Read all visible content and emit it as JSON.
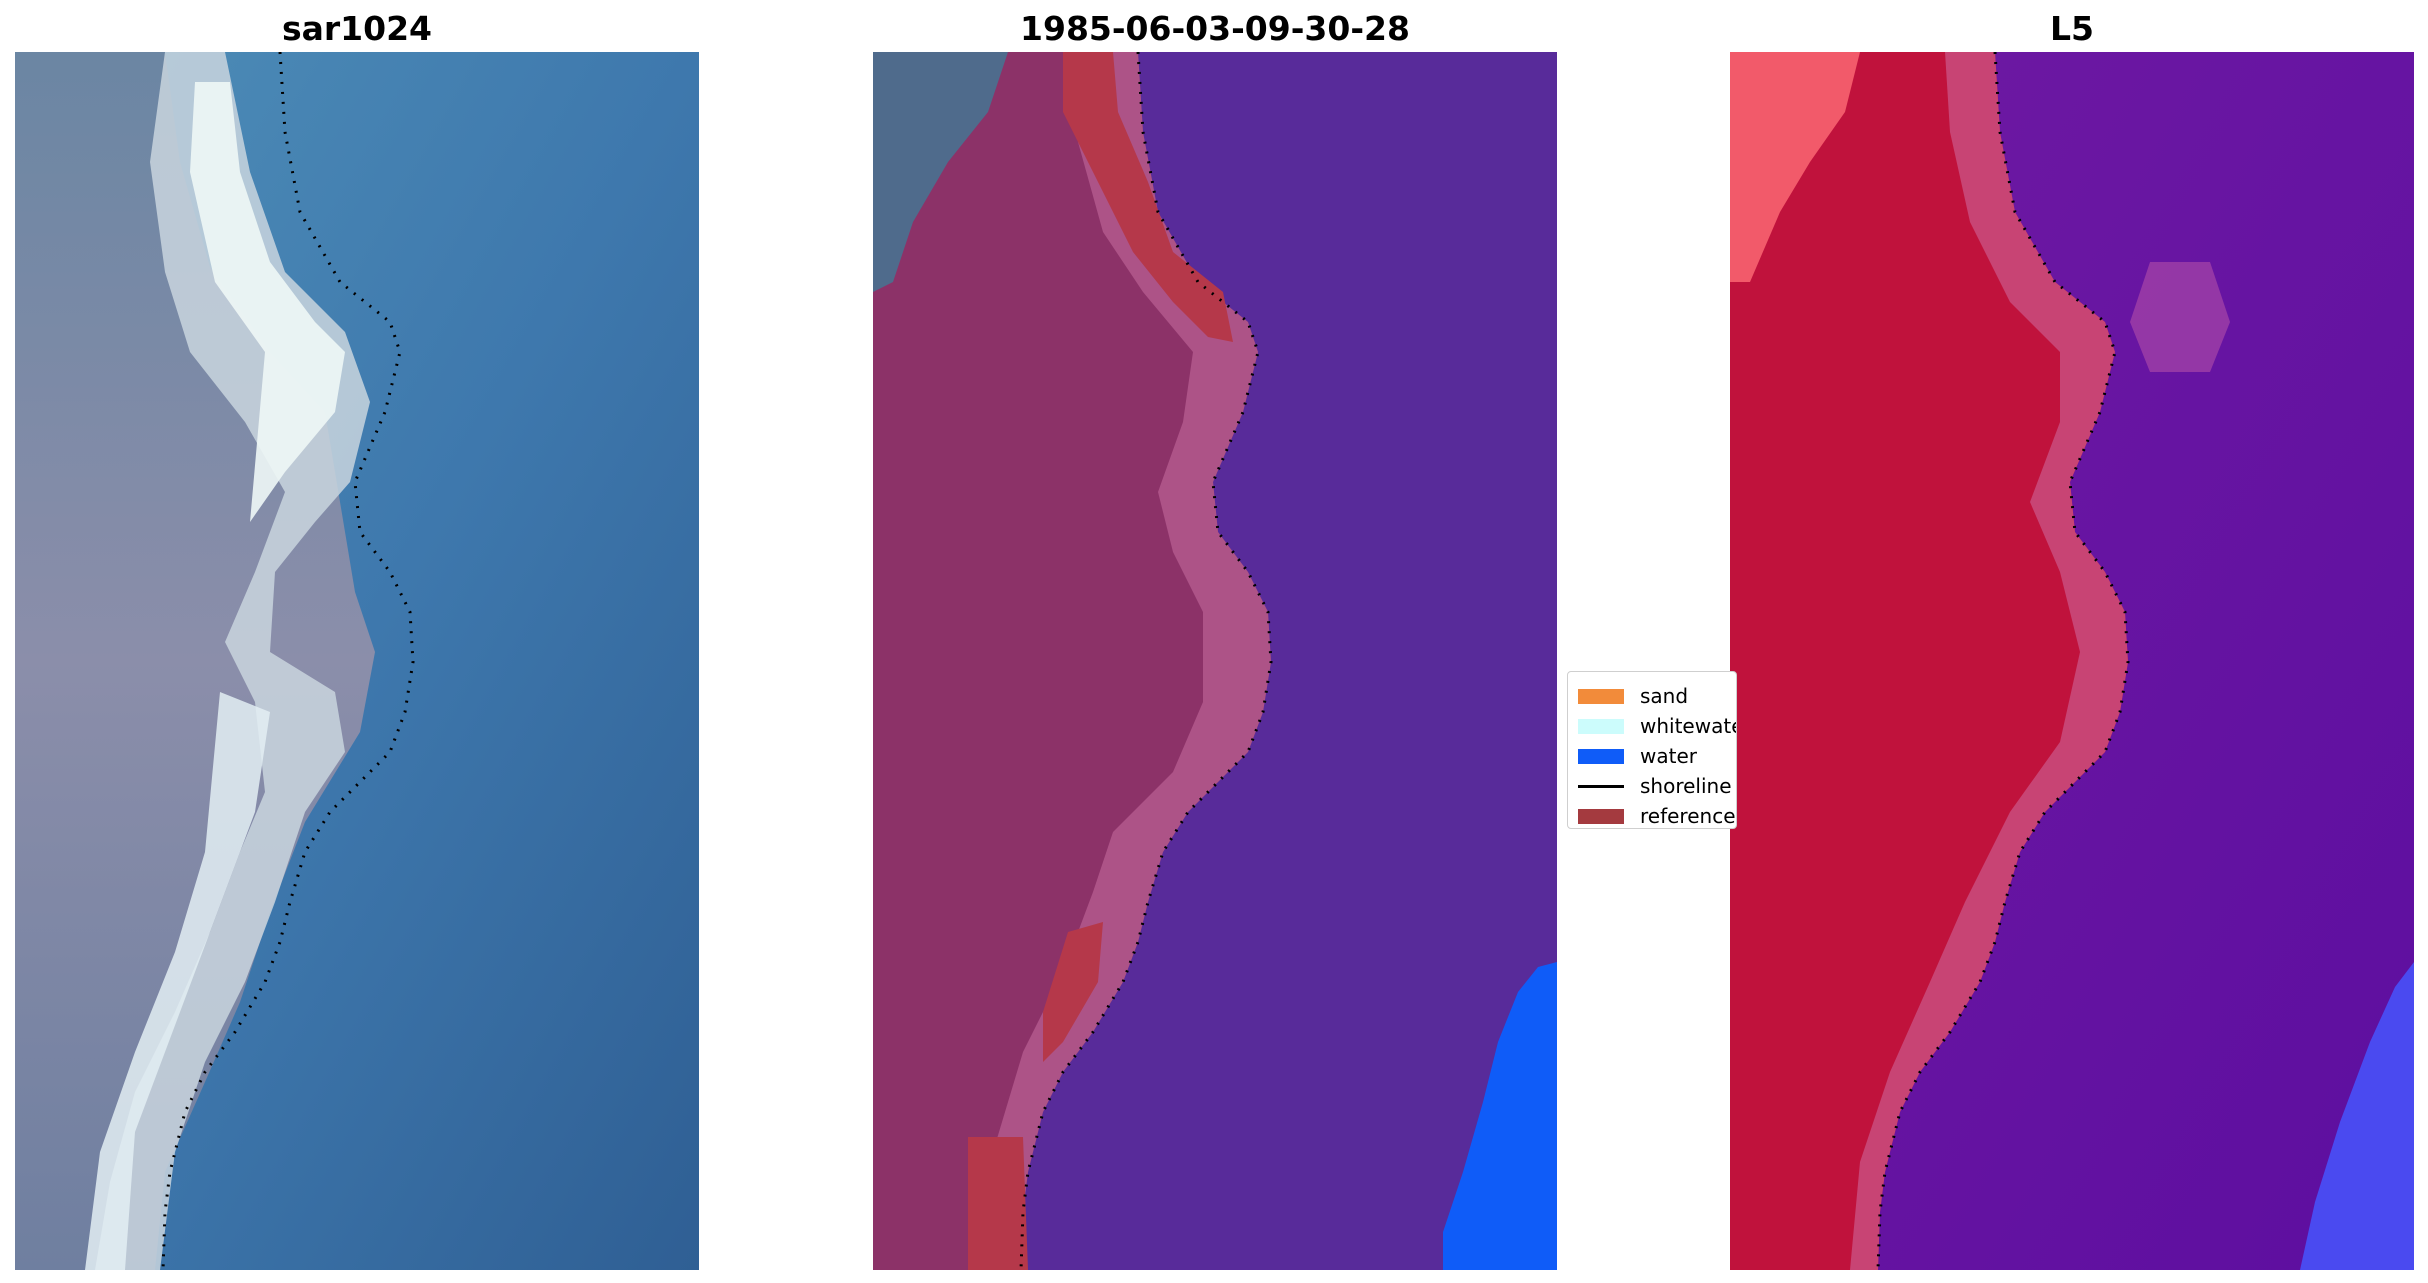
{
  "panels": [
    {
      "title": "sar1024",
      "kind": "rgb-image"
    },
    {
      "title": "1985-06-03-09-30-28",
      "kind": "classified-image"
    },
    {
      "title": "L5",
      "kind": "probability-image"
    }
  ],
  "legend": {
    "items": [
      {
        "label": "sand",
        "type": "patch",
        "color": "#f28b3a"
      },
      {
        "label": "whitewater",
        "type": "patch",
        "color": "#ccfcfc"
      },
      {
        "label": "water",
        "type": "patch",
        "color": "#0f5cf8"
      },
      {
        "label": "shoreline",
        "type": "line",
        "color": "#000000"
      },
      {
        "label": "reference",
        "type": "patch",
        "color": "#a43a3f"
      }
    ]
  },
  "colors": {
    "water_rgb": "#3d73a8",
    "land_rgb": "#7f8aa6",
    "surf_rgb": "#e6f2f4",
    "classified_land": "#8c3268",
    "classified_water": "#582b9a",
    "classified_reference": "#b5384a",
    "classified_water_class": "#0f5cf8",
    "prob_land": "#c0123c",
    "prob_water": "#6a12a0",
    "prob_blue": "#4040ff"
  }
}
